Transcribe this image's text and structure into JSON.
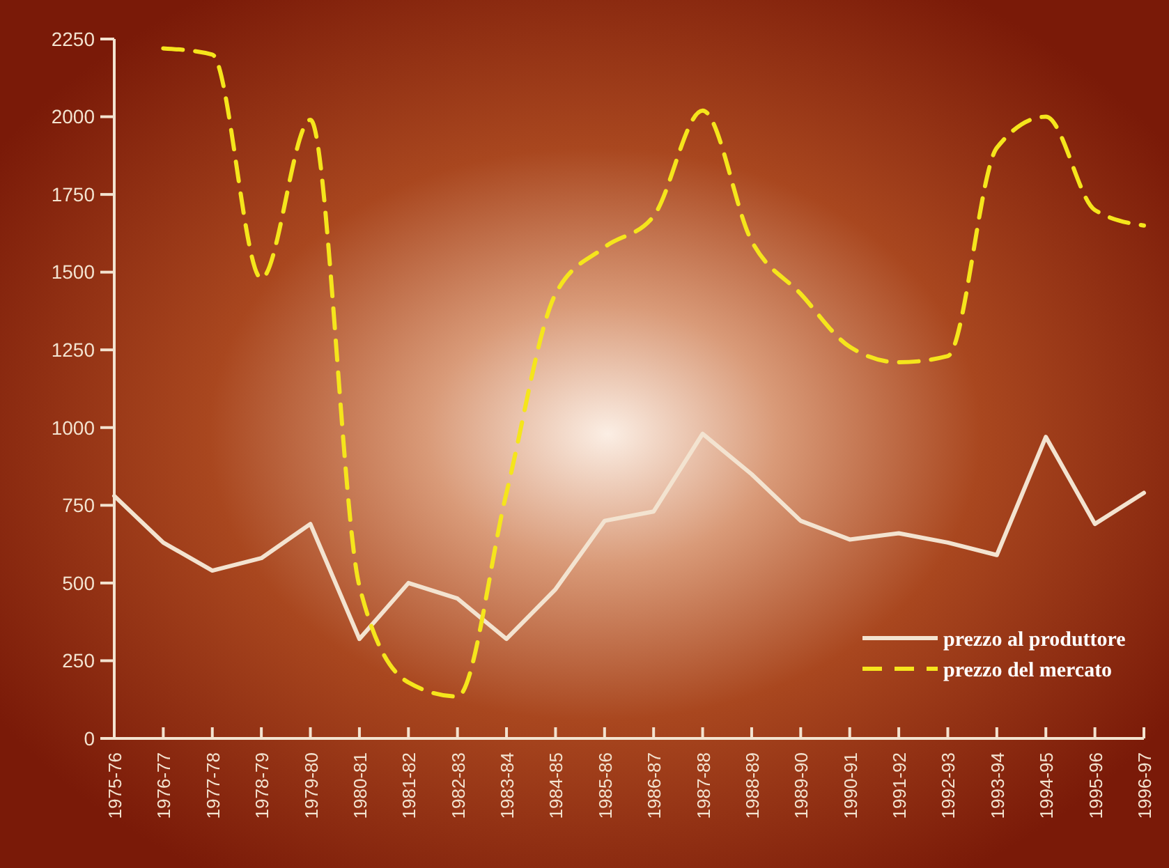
{
  "chart_data": {
    "type": "line",
    "categories": [
      "1975-76",
      "1976-77",
      "1977-78",
      "1978-79",
      "1979-80",
      "1980-81",
      "1981-82",
      "1982-83",
      "1983-84",
      "1984-85",
      "1985-86",
      "1986-87",
      "1987-88",
      "1988-89",
      "1989-90",
      "1990-91",
      "1991-92",
      "1992-93",
      "1993-94",
      "1994-95",
      "1995-96",
      "1996-97"
    ],
    "series": [
      {
        "name": "prezzo al produttore",
        "color": "#f3e3d0",
        "line_style": "solid",
        "values": [
          780,
          630,
          540,
          580,
          690,
          320,
          500,
          450,
          320,
          480,
          700,
          730,
          980,
          850,
          700,
          640,
          660,
          630,
          590,
          970,
          690,
          790
        ]
      },
      {
        "name": "prezzo del mercato",
        "color": "#f5e51c",
        "line_style": "dashed",
        "values": [
          null,
          2220,
          2200,
          1480,
          1990,
          490,
          180,
          135,
          790,
          1430,
          1580,
          1680,
          2020,
          1600,
          1430,
          1260,
          1210,
          1230,
          1900,
          2000,
          1700,
          1650
        ]
      }
    ],
    "ylim": [
      0,
      2250
    ],
    "yticks": [
      0,
      250,
      500,
      750,
      1000,
      1250,
      1500,
      1750,
      2000,
      2250
    ],
    "grid": false,
    "legend": "bottom right",
    "marker": "none"
  }
}
